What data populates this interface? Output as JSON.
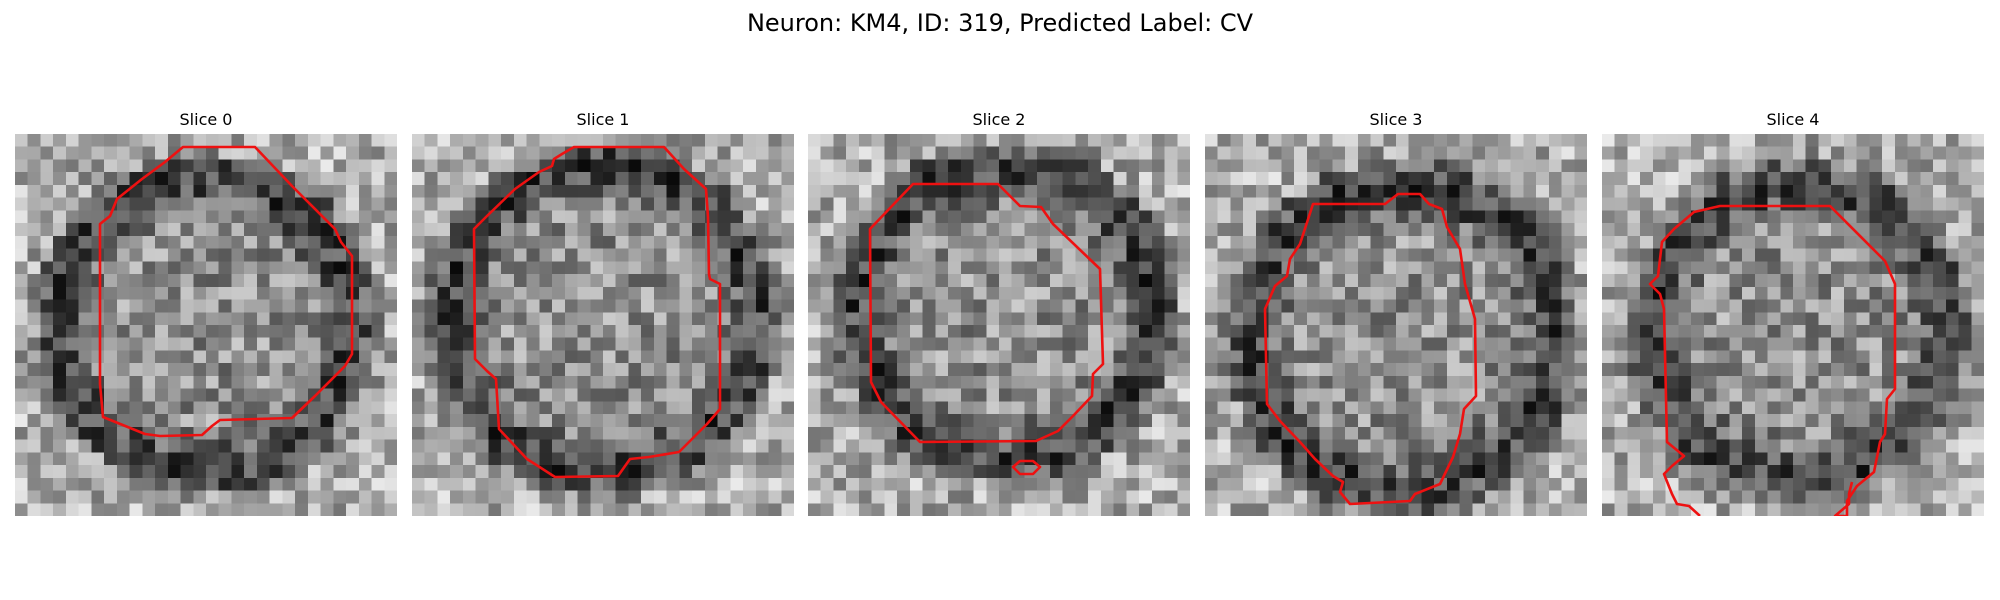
{
  "figure": {
    "title": "Neuron: KM4, ID: 319, Predicted Label: CV"
  },
  "colors": {
    "contour": "#ee1111",
    "background": "#ffffff"
  },
  "panels": [
    {
      "title": "Slice 0"
    },
    {
      "title": "Slice 1"
    },
    {
      "title": "Slice 2"
    },
    {
      "title": "Slice 3"
    },
    {
      "title": "Slice 4"
    }
  ]
}
